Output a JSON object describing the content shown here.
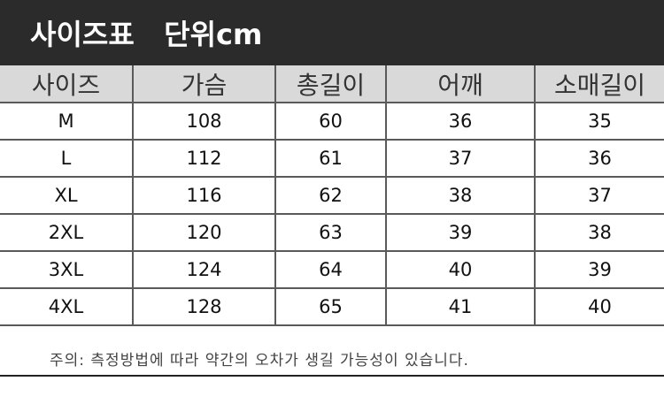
{
  "header": {
    "title": "사이즈표   단위cm"
  },
  "table": {
    "columns": [
      "사이즈",
      "가슴",
      "총길이",
      "어깨",
      "소매길이"
    ],
    "rows": [
      [
        "M",
        "108",
        "60",
        "36",
        "35"
      ],
      [
        "L",
        "112",
        "61",
        "37",
        "36"
      ],
      [
        "XL",
        "116",
        "62",
        "38",
        "37"
      ],
      [
        "2XL",
        "120",
        "63",
        "39",
        "38"
      ],
      [
        "3XL",
        "124",
        "64",
        "40",
        "39"
      ],
      [
        "4XL",
        "128",
        "65",
        "41",
        "40"
      ]
    ]
  },
  "note": "주의: 측정방법에 따라 약간의 오차가 생길 가능성이 있습니다."
}
